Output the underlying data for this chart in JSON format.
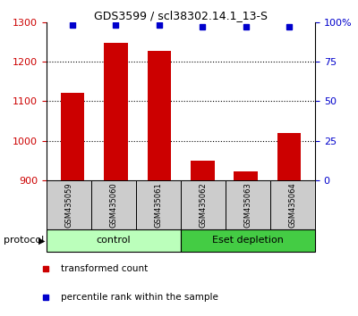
{
  "title": "GDS3599 / scl38302.14.1_13-S",
  "samples": [
    "GSM435059",
    "GSM435060",
    "GSM435061",
    "GSM435062",
    "GSM435063",
    "GSM435064"
  ],
  "red_values": [
    1120,
    1248,
    1228,
    950,
    922,
    1020
  ],
  "blue_values": [
    98,
    98,
    98,
    97,
    97,
    97
  ],
  "ylim_left": [
    900,
    1300
  ],
  "ylim_right": [
    0,
    100
  ],
  "yticks_left": [
    900,
    1000,
    1100,
    1200,
    1300
  ],
  "yticks_right": [
    0,
    25,
    50,
    75,
    100
  ],
  "ytick_labels_right": [
    "0",
    "25",
    "50",
    "75",
    "100%"
  ],
  "bar_color": "#cc0000",
  "dot_color": "#0000cc",
  "bar_width": 0.55,
  "protocol_groups": [
    {
      "label": "control",
      "start": 0,
      "end": 3,
      "color": "#bbffbb"
    },
    {
      "label": "Eset depletion",
      "start": 3,
      "end": 6,
      "color": "#44cc44"
    }
  ],
  "protocol_label": "protocol",
  "legend_items": [
    {
      "color": "#cc0000",
      "label": "transformed count"
    },
    {
      "color": "#0000cc",
      "label": "percentile rank within the sample"
    }
  ],
  "tick_label_color_left": "#cc0000",
  "tick_label_color_right": "#0000cc",
  "xlabel_box_color": "#cccccc",
  "fig_bg": "#ffffff",
  "title_fontsize": 9,
  "axis_fontsize": 8,
  "label_fontsize": 6,
  "legend_fontsize": 7.5
}
